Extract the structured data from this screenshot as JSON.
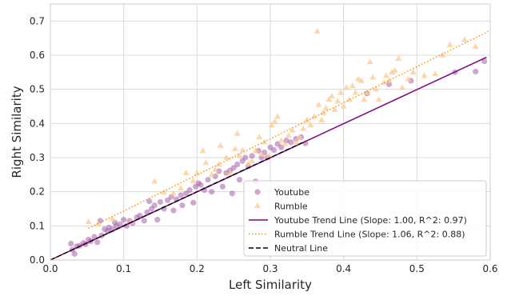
{
  "chart_data": {
    "type": "scatter",
    "xlabel": "Left Similarity",
    "ylabel": "Right Similarity",
    "xlim": [
      0.0,
      0.6
    ],
    "ylim": [
      0.0,
      0.75
    ],
    "x_ticks": [
      "0.0",
      "0.1",
      "0.2",
      "0.3",
      "0.4",
      "0.5",
      "0.6"
    ],
    "y_ticks": [
      "0.0",
      "0.1",
      "0.2",
      "0.3",
      "0.4",
      "0.5",
      "0.6",
      "0.7"
    ],
    "grid": true,
    "legend_position": "bottom-right",
    "series": [
      {
        "name": "Youtube",
        "kind": "scatter",
        "marker": "circle",
        "color": "#a45ea8",
        "points": [
          [
            0.028,
            0.048
          ],
          [
            0.03,
            0.03
          ],
          [
            0.033,
            0.018
          ],
          [
            0.036,
            0.04
          ],
          [
            0.04,
            0.042
          ],
          [
            0.045,
            0.05
          ],
          [
            0.048,
            0.046
          ],
          [
            0.052,
            0.06
          ],
          [
            0.055,
            0.055
          ],
          [
            0.06,
            0.068
          ],
          [
            0.064,
            0.052
          ],
          [
            0.068,
            0.115
          ],
          [
            0.07,
            0.072
          ],
          [
            0.074,
            0.09
          ],
          [
            0.078,
            0.085
          ],
          [
            0.08,
            0.095
          ],
          [
            0.085,
            0.09
          ],
          [
            0.088,
            0.11
          ],
          [
            0.09,
            0.1
          ],
          [
            0.095,
            0.105
          ],
          [
            0.1,
            0.118
          ],
          [
            0.104,
            0.1
          ],
          [
            0.108,
            0.115
          ],
          [
            0.112,
            0.108
          ],
          [
            0.118,
            0.125
          ],
          [
            0.122,
            0.13
          ],
          [
            0.128,
            0.115
          ],
          [
            0.132,
            0.14
          ],
          [
            0.135,
            0.172
          ],
          [
            0.138,
            0.15
          ],
          [
            0.142,
            0.16
          ],
          [
            0.146,
            0.118
          ],
          [
            0.15,
            0.17
          ],
          [
            0.155,
            0.15
          ],
          [
            0.16,
            0.175
          ],
          [
            0.165,
            0.185
          ],
          [
            0.168,
            0.145
          ],
          [
            0.172,
            0.178
          ],
          [
            0.178,
            0.19
          ],
          [
            0.18,
            0.16
          ],
          [
            0.185,
            0.195
          ],
          [
            0.19,
            0.205
          ],
          [
            0.195,
            0.168
          ],
          [
            0.198,
            0.215
          ],
          [
            0.202,
            0.225
          ],
          [
            0.205,
            0.22
          ],
          [
            0.21,
            0.205
          ],
          [
            0.215,
            0.235
          ],
          [
            0.22,
            0.2
          ],
          [
            0.225,
            0.245
          ],
          [
            0.23,
            0.26
          ],
          [
            0.235,
            0.215
          ],
          [
            0.24,
            0.255
          ],
          [
            0.245,
            0.262
          ],
          [
            0.248,
            0.195
          ],
          [
            0.25,
            0.27
          ],
          [
            0.255,
            0.28
          ],
          [
            0.258,
            0.235
          ],
          [
            0.262,
            0.29
          ],
          [
            0.266,
            0.3
          ],
          [
            0.27,
            0.275
          ],
          [
            0.275,
            0.305
          ],
          [
            0.28,
            0.23
          ],
          [
            0.284,
            0.32
          ],
          [
            0.288,
            0.3
          ],
          [
            0.292,
            0.315
          ],
          [
            0.296,
            0.3
          ],
          [
            0.3,
            0.33
          ],
          [
            0.305,
            0.322
          ],
          [
            0.31,
            0.34
          ],
          [
            0.315,
            0.33
          ],
          [
            0.322,
            0.35
          ],
          [
            0.328,
            0.345
          ],
          [
            0.335,
            0.355
          ],
          [
            0.342,
            0.36
          ],
          [
            0.348,
            0.342
          ],
          [
            0.432,
            0.488
          ],
          [
            0.462,
            0.515
          ],
          [
            0.492,
            0.525
          ],
          [
            0.552,
            0.55
          ],
          [
            0.58,
            0.552
          ],
          [
            0.592,
            0.582
          ]
        ]
      },
      {
        "name": "Rumble",
        "kind": "scatter",
        "marker": "triangle",
        "color": "#fcc98c",
        "points": [
          [
            0.052,
            0.112
          ],
          [
            0.065,
            0.105
          ],
          [
            0.085,
            0.12
          ],
          [
            0.11,
            0.112
          ],
          [
            0.142,
            0.23
          ],
          [
            0.155,
            0.198
          ],
          [
            0.168,
            0.195
          ],
          [
            0.178,
            0.21
          ],
          [
            0.185,
            0.255
          ],
          [
            0.195,
            0.232
          ],
          [
            0.2,
            0.255
          ],
          [
            0.208,
            0.32
          ],
          [
            0.212,
            0.285
          ],
          [
            0.22,
            0.25
          ],
          [
            0.225,
            0.265
          ],
          [
            0.23,
            0.28
          ],
          [
            0.232,
            0.335
          ],
          [
            0.24,
            0.3
          ],
          [
            0.245,
            0.255
          ],
          [
            0.252,
            0.325
          ],
          [
            0.255,
            0.37
          ],
          [
            0.258,
            0.305
          ],
          [
            0.262,
            0.322
          ],
          [
            0.27,
            0.282
          ],
          [
            0.275,
            0.29
          ],
          [
            0.28,
            0.32
          ],
          [
            0.285,
            0.36
          ],
          [
            0.288,
            0.31
          ],
          [
            0.292,
            0.345
          ],
          [
            0.298,
            0.305
          ],
          [
            0.302,
            0.395
          ],
          [
            0.306,
            0.405
          ],
          [
            0.31,
            0.42
          ],
          [
            0.315,
            0.35
          ],
          [
            0.32,
            0.34
          ],
          [
            0.325,
            0.365
          ],
          [
            0.33,
            0.38
          ],
          [
            0.335,
            0.345
          ],
          [
            0.34,
            0.36
          ],
          [
            0.345,
            0.385
          ],
          [
            0.35,
            0.41
          ],
          [
            0.355,
            0.395
          ],
          [
            0.36,
            0.42
          ],
          [
            0.364,
            0.67
          ],
          [
            0.366,
            0.455
          ],
          [
            0.37,
            0.41
          ],
          [
            0.372,
            0.43
          ],
          [
            0.376,
            0.445
          ],
          [
            0.38,
            0.47
          ],
          [
            0.384,
            0.48
          ],
          [
            0.388,
            0.44
          ],
          [
            0.392,
            0.465
          ],
          [
            0.396,
            0.49
          ],
          [
            0.4,
            0.45
          ],
          [
            0.404,
            0.505
          ],
          [
            0.408,
            0.47
          ],
          [
            0.412,
            0.51
          ],
          [
            0.416,
            0.49
          ],
          [
            0.42,
            0.53
          ],
          [
            0.424,
            0.525
          ],
          [
            0.428,
            0.47
          ],
          [
            0.432,
            0.49
          ],
          [
            0.436,
            0.58
          ],
          [
            0.44,
            0.535
          ],
          [
            0.444,
            0.5
          ],
          [
            0.448,
            0.47
          ],
          [
            0.455,
            0.52
          ],
          [
            0.458,
            0.54
          ],
          [
            0.462,
            0.525
          ],
          [
            0.466,
            0.55
          ],
          [
            0.47,
            0.555
          ],
          [
            0.475,
            0.59
          ],
          [
            0.48,
            0.505
          ],
          [
            0.488,
            0.53
          ],
          [
            0.495,
            0.55
          ],
          [
            0.51,
            0.54
          ],
          [
            0.525,
            0.545
          ],
          [
            0.535,
            0.6
          ],
          [
            0.545,
            0.63
          ],
          [
            0.565,
            0.645
          ],
          [
            0.58,
            0.625
          ]
        ]
      },
      {
        "name": "Youtube Trend Line (Slope: 1.00, R^2: 0.97)",
        "kind": "line",
        "style": "solid",
        "color": "#800080",
        "points": [
          [
            0.0,
            0.0
          ],
          [
            0.595,
            0.594
          ]
        ]
      },
      {
        "name": "Rumble Trend Line (Slope: 1.06, R^2: 0.88)",
        "kind": "line",
        "style": "dotted",
        "color": "#ff8c00",
        "points": [
          [
            0.052,
            0.093
          ],
          [
            0.6,
            0.672
          ]
        ]
      },
      {
        "name": "Neutral Line",
        "kind": "line",
        "style": "dashed",
        "color": "#000000",
        "points": [
          [
            0.0,
            0.0
          ],
          [
            0.345,
            0.345
          ]
        ]
      }
    ]
  }
}
